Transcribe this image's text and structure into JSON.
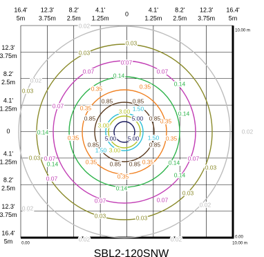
{
  "title": "SBL2-120SNW",
  "scale": {
    "top_right": "10.00 m",
    "right_bottom": "0.00",
    "bottom_left": "0.00",
    "bottom_right": "10.00 m"
  },
  "top_axis": [
    [
      "16.4'",
      "5m"
    ],
    [
      "12.3'",
      "3.75m"
    ],
    [
      "8.2'",
      "2.5m"
    ],
    [
      "4.1'",
      "1.25m"
    ],
    [
      "0"
    ],
    [
      "4.1'",
      "1.25m"
    ],
    [
      "8.2'",
      "2.5m"
    ],
    [
      "12.3'",
      "3.75m"
    ],
    [
      "16.4'",
      "5m"
    ]
  ],
  "left_axis": [
    [
      "12.3'",
      "3.75m"
    ],
    [
      "8.2'",
      "2.5m"
    ],
    [
      "4.1'",
      "1.25m"
    ],
    [
      "0"
    ],
    [
      "4.1'",
      "1.25m"
    ],
    [
      "8.2'",
      "2.5m"
    ],
    [
      "12.3'",
      "3.75m"
    ],
    [
      "16.4'",
      "5m"
    ]
  ],
  "contours": [
    {
      "label": "0.02",
      "color": "#bdbdbd"
    },
    {
      "label": "0.03",
      "color": "#8a8a2a"
    },
    {
      "label": "0.07",
      "color": "#c23fb5"
    },
    {
      "label": "0.14",
      "color": "#2db34a"
    },
    {
      "label": "0.35",
      "color": "#f07f1e"
    },
    {
      "label": "0.85",
      "color": "#5a3a1e"
    },
    {
      "label": "1.50",
      "color": "#2bbfd8"
    },
    {
      "label": "3.00",
      "color": "#b6c22a"
    },
    {
      "label": "5.00",
      "color": "#1a1a5e"
    }
  ]
}
